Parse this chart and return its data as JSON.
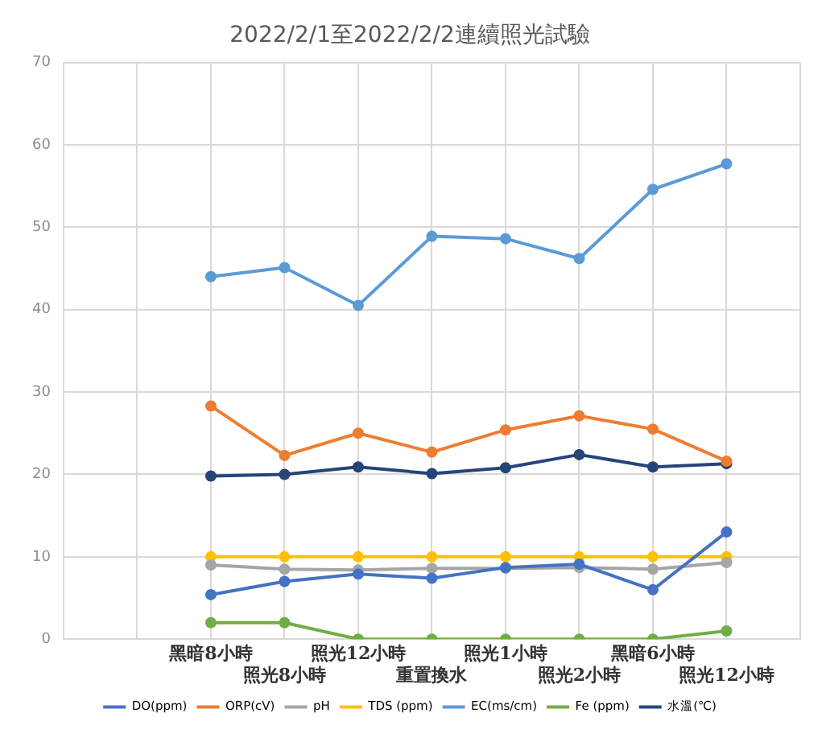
{
  "chart_data": {
    "type": "line",
    "title": "2022/2/1至2022/2/2連續照光試驗",
    "categories": [
      null,
      null,
      "黑暗8小時",
      "照光8小時",
      "照光12小時",
      "重置換水",
      "照光1小時",
      "照光2小時",
      "黑暗6小時",
      "照光12小時",
      null
    ],
    "series": [
      {
        "name": "DO(ppm)",
        "color": "#4472c4",
        "values": [
          null,
          null,
          5.4,
          7,
          7.9,
          7.4,
          8.7,
          9.1,
          6,
          13,
          null
        ]
      },
      {
        "name": "ORP(cV)",
        "color": "#ed7d31",
        "values": [
          null,
          null,
          28.3,
          22.3,
          25,
          22.7,
          25.4,
          27.1,
          25.5,
          21.6,
          null
        ]
      },
      {
        "name": "pH",
        "color": "#a5a5a5",
        "values": [
          null,
          null,
          9,
          8.5,
          8.4,
          8.6,
          8.6,
          8.7,
          8.5,
          9.3,
          null
        ]
      },
      {
        "name": "TDS (ppm)",
        "color": "#ffc000",
        "values": [
          null,
          null,
          10,
          10,
          10,
          10,
          10,
          10,
          10,
          10,
          null
        ]
      },
      {
        "name": "EC(ms/cm)",
        "color": "#5b9bd5",
        "values": [
          null,
          null,
          44,
          45.1,
          40.5,
          48.9,
          48.6,
          46.2,
          54.6,
          57.7,
          null
        ]
      },
      {
        "name": "Fe (ppm)",
        "color": "#70ad47",
        "values": [
          null,
          null,
          2,
          2,
          0,
          0,
          0,
          0,
          0,
          1,
          null
        ]
      },
      {
        "name": "水溫(℃)",
        "color": "#264478",
        "values": [
          null,
          null,
          19.8,
          20,
          20.9,
          20.1,
          20.8,
          22.4,
          20.9,
          21.3,
          null
        ]
      }
    ],
    "ylim": [
      0,
      70
    ],
    "yticks": [
      0,
      10,
      20,
      30,
      40,
      50,
      60,
      70
    ],
    "grid": true,
    "legend": "bottom",
    "marker": "circle",
    "line_style": "solid"
  }
}
